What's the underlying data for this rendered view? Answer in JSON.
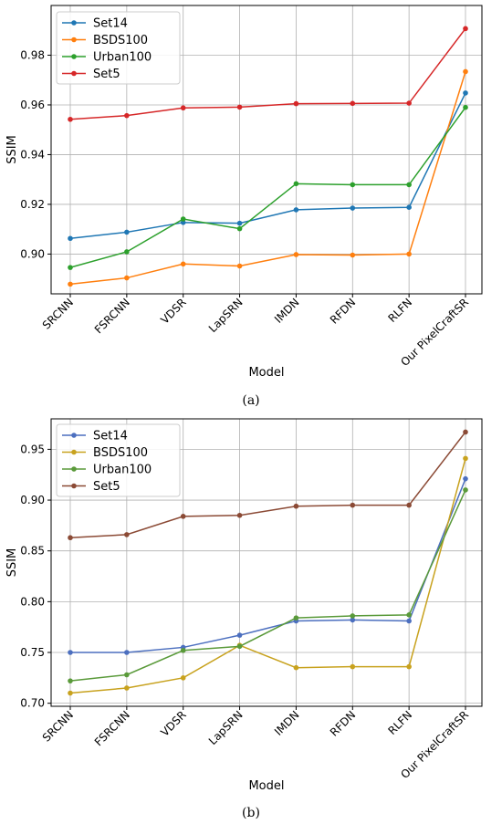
{
  "chart_data": [
    {
      "type": "line",
      "caption": "(a)",
      "xlabel": "Model",
      "ylabel": "SSIM",
      "categories": [
        "SRCNN",
        "FSRCNN",
        "VDSR",
        "LapSRN",
        "IMDN",
        "RFDN",
        "RLFN",
        "Our PixelCraftSR"
      ],
      "ylim": [
        0.884,
        1.0
      ],
      "yticks": [
        0.9,
        0.92,
        0.94,
        0.96,
        0.98
      ],
      "ytick_labels": [
        "0.90",
        "0.92",
        "0.94",
        "0.96",
        "0.98"
      ],
      "grid": true,
      "legend_position": "top-left",
      "series": [
        {
          "name": "Set14",
          "color": "#1f77b4",
          "values": [
            0.9063,
            0.9088,
            0.9127,
            0.9124,
            0.9178,
            0.9185,
            0.9188,
            0.9648
          ]
        },
        {
          "name": "BSDS100",
          "color": "#ff7f0e",
          "values": [
            0.8879,
            0.8904,
            0.896,
            0.8952,
            0.8998,
            0.8996,
            0.9,
            0.9734
          ]
        },
        {
          "name": "Urban100",
          "color": "#2ca02c",
          "values": [
            0.8946,
            0.9009,
            0.9141,
            0.9102,
            0.9283,
            0.9279,
            0.9279,
            0.959
          ]
        },
        {
          "name": "Set5",
          "color": "#d62728",
          "values": [
            0.9542,
            0.9557,
            0.9588,
            0.9591,
            0.9605,
            0.9606,
            0.9607,
            0.9907
          ]
        }
      ]
    },
    {
      "type": "line",
      "caption": "(b)",
      "xlabel": "Model",
      "ylabel": "SSIM",
      "categories": [
        "SRCNN",
        "FSRCNN",
        "VDSR",
        "LapSRN",
        "IMDN",
        "RFDN",
        "RLFN",
        "Our PixelCraftSR"
      ],
      "ylim": [
        0.697,
        0.98
      ],
      "yticks": [
        0.7,
        0.75,
        0.8,
        0.85,
        0.9,
        0.95
      ],
      "ytick_labels": [
        "0.70",
        "0.75",
        "0.80",
        "0.85",
        "0.90",
        "0.95"
      ],
      "grid": true,
      "legend_position": "top-left",
      "series": [
        {
          "name": "Set14",
          "color": "#4c6fbf",
          "values": [
            0.75,
            0.75,
            0.755,
            0.767,
            0.781,
            0.782,
            0.781,
            0.921
          ]
        },
        {
          "name": "BSDS100",
          "color": "#c8a21e",
          "values": [
            0.71,
            0.715,
            0.725,
            0.757,
            0.735,
            0.736,
            0.736,
            0.941
          ]
        },
        {
          "name": "Urban100",
          "color": "#5a9a3a",
          "values": [
            0.722,
            0.728,
            0.752,
            0.756,
            0.784,
            0.786,
            0.787,
            0.91
          ]
        },
        {
          "name": "Set5",
          "color": "#8b4a35",
          "values": [
            0.863,
            0.866,
            0.884,
            0.885,
            0.894,
            0.895,
            0.895,
            0.967
          ]
        }
      ]
    }
  ]
}
